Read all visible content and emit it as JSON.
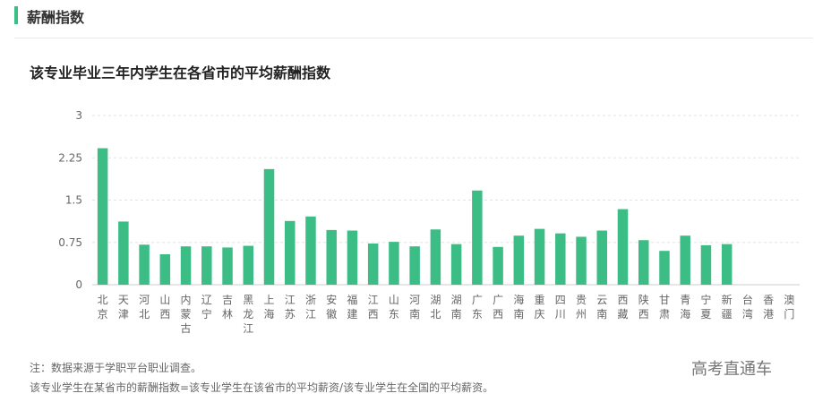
{
  "header": {
    "title": "薪酬指数"
  },
  "chart_data": {
    "type": "bar",
    "title": "该专业毕业三年内学生在各省市的平均薪酬指数",
    "xlabel": "",
    "ylabel": "",
    "ylim": [
      0,
      3
    ],
    "yticks": [
      "0",
      "0.75",
      "1.5",
      "2.25",
      "3"
    ],
    "yticks_values": [
      0,
      0.75,
      1.5,
      2.25,
      3
    ],
    "grid": true,
    "bar_color": "#3dbd86",
    "categories": [
      "北京",
      "天津",
      "河北",
      "山西",
      "内蒙古",
      "辽宁",
      "吉林",
      "黑龙江",
      "上海",
      "江苏",
      "浙江",
      "安徽",
      "福建",
      "江西",
      "山东",
      "河南",
      "湖北",
      "湖南",
      "广东",
      "广西",
      "海南",
      "重庆",
      "四川",
      "贵州",
      "云南",
      "西藏",
      "陕西",
      "甘肃",
      "青海",
      "宁夏",
      "新疆",
      "台湾",
      "香港",
      "澳门"
    ],
    "values": [
      2.42,
      1.12,
      0.71,
      0.54,
      0.68,
      0.68,
      0.66,
      0.69,
      2.05,
      1.13,
      1.21,
      0.97,
      0.96,
      0.73,
      0.76,
      0.68,
      0.98,
      0.72,
      1.67,
      0.67,
      0.87,
      0.99,
      0.91,
      0.85,
      0.96,
      1.34,
      0.79,
      0.6,
      0.87,
      0.7,
      0.72,
      0,
      0,
      0
    ]
  },
  "footnotes": {
    "line1": "注：数据来源于学职平台职业调查。",
    "line2": "该专业学生在某省市的薪酬指数=该专业学生在该省市的平均薪资/该专业学生在全国的平均薪资。"
  },
  "brand": "高考直通车"
}
